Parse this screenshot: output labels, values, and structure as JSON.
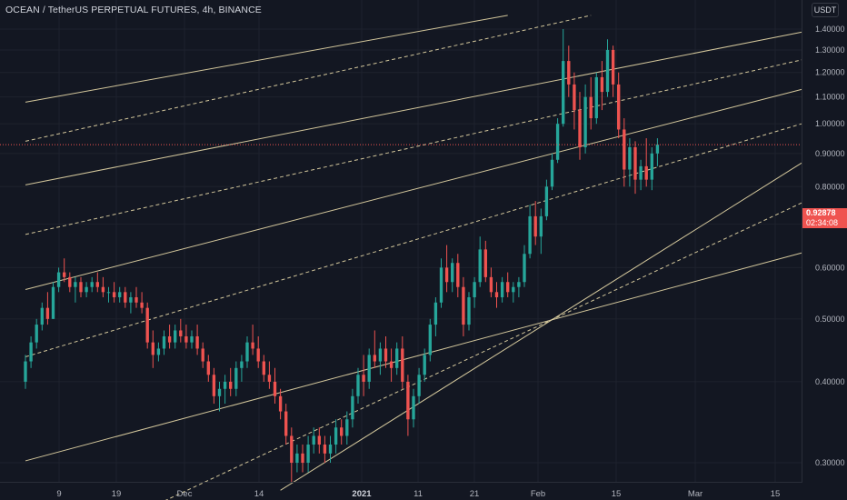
{
  "header": {
    "title": "OCEAN / TetherUS PERPETUAL FUTURES, 4h, BINANCE",
    "currency": "USDT"
  },
  "price_tag": {
    "price": "0.92878",
    "countdown": "02:34:08",
    "color": "#ef5350"
  },
  "colors": {
    "background": "#131722",
    "up": "#26a69a",
    "down": "#ef5350",
    "channel": "#e8d9a8",
    "grid": "#1e222d",
    "axis_text": "#b2b5be"
  },
  "chart_data": {
    "type": "candlestick",
    "title": "OCEAN / TetherUS PERPETUAL FUTURES, 4h, BINANCE",
    "xlabel": "",
    "ylabel": "",
    "ylim": [
      0.27,
      1.43
    ],
    "y_scale": "log",
    "grid": true,
    "y_ticks": [
      "1.40000",
      "1.30000",
      "1.20000",
      "1.10000",
      "1.00000",
      "0.90000",
      "0.80000",
      "0.70000",
      "0.60000",
      "0.50000",
      "0.40000",
      "0.30000"
    ],
    "x_ticks": [
      {
        "label": "9",
        "bold": false
      },
      {
        "label": "19",
        "bold": false
      },
      {
        "label": "Dec",
        "bold": false
      },
      {
        "label": "14",
        "bold": false
      },
      {
        "label": "2021",
        "bold": true
      },
      {
        "label": "11",
        "bold": false
      },
      {
        "label": "21",
        "bold": false
      },
      {
        "label": "Feb",
        "bold": false
      },
      {
        "label": "15",
        "bold": false
      },
      {
        "label": "Mar",
        "bold": false
      },
      {
        "label": "15",
        "bold": false
      }
    ],
    "x_range": [
      "2020-11-03",
      "2021-03-23"
    ],
    "last_price": 0.92878,
    "candles": [
      [
        "2020-11-03",
        0.4,
        0.44,
        0.39,
        0.43
      ],
      [
        "2020-11-04",
        0.43,
        0.47,
        0.42,
        0.46
      ],
      [
        "2020-11-05",
        0.46,
        0.5,
        0.45,
        0.49
      ],
      [
        "2020-11-06",
        0.49,
        0.53,
        0.48,
        0.52
      ],
      [
        "2020-11-07",
        0.52,
        0.55,
        0.49,
        0.5
      ],
      [
        "2020-11-08",
        0.5,
        0.57,
        0.5,
        0.56
      ],
      [
        "2020-11-09",
        0.56,
        0.6,
        0.55,
        0.59
      ],
      [
        "2020-11-10",
        0.59,
        0.62,
        0.57,
        0.58
      ],
      [
        "2020-11-11",
        0.58,
        0.59,
        0.55,
        0.56
      ],
      [
        "2020-11-12",
        0.56,
        0.58,
        0.53,
        0.57
      ],
      [
        "2020-11-13",
        0.57,
        0.58,
        0.54,
        0.55
      ],
      [
        "2020-11-14",
        0.55,
        0.57,
        0.54,
        0.56
      ],
      [
        "2020-11-15",
        0.56,
        0.58,
        0.55,
        0.57
      ],
      [
        "2020-11-16",
        0.57,
        0.59,
        0.55,
        0.56
      ],
      [
        "2020-11-17",
        0.56,
        0.58,
        0.54,
        0.55
      ],
      [
        "2020-11-18",
        0.55,
        0.56,
        0.53,
        0.55
      ],
      [
        "2020-11-19",
        0.55,
        0.57,
        0.53,
        0.54
      ],
      [
        "2020-11-20",
        0.54,
        0.56,
        0.53,
        0.55
      ],
      [
        "2020-11-21",
        0.55,
        0.56,
        0.52,
        0.53
      ],
      [
        "2020-11-22",
        0.53,
        0.55,
        0.51,
        0.54
      ],
      [
        "2020-11-23",
        0.54,
        0.56,
        0.52,
        0.53
      ],
      [
        "2020-11-24",
        0.53,
        0.55,
        0.51,
        0.52
      ],
      [
        "2020-11-25",
        0.52,
        0.53,
        0.45,
        0.46
      ],
      [
        "2020-11-26",
        0.46,
        0.48,
        0.42,
        0.44
      ],
      [
        "2020-11-27",
        0.44,
        0.46,
        0.43,
        0.45
      ],
      [
        "2020-11-28",
        0.45,
        0.48,
        0.44,
        0.47
      ],
      [
        "2020-11-29",
        0.47,
        0.49,
        0.45,
        0.46
      ],
      [
        "2020-11-30",
        0.46,
        0.49,
        0.45,
        0.48
      ],
      [
        "2020-12-01",
        0.48,
        0.5,
        0.46,
        0.47
      ],
      [
        "2020-12-02",
        0.47,
        0.49,
        0.45,
        0.46
      ],
      [
        "2020-12-03",
        0.46,
        0.48,
        0.45,
        0.47
      ],
      [
        "2020-12-04",
        0.47,
        0.49,
        0.44,
        0.45
      ],
      [
        "2020-12-05",
        0.45,
        0.46,
        0.42,
        0.43
      ],
      [
        "2020-12-06",
        0.43,
        0.44,
        0.4,
        0.41
      ],
      [
        "2020-12-07",
        0.41,
        0.42,
        0.37,
        0.38
      ],
      [
        "2020-12-08",
        0.38,
        0.4,
        0.36,
        0.39
      ],
      [
        "2020-12-09",
        0.39,
        0.41,
        0.37,
        0.4
      ],
      [
        "2020-12-10",
        0.4,
        0.42,
        0.38,
        0.39
      ],
      [
        "2020-12-11",
        0.39,
        0.43,
        0.38,
        0.42
      ],
      [
        "2020-12-12",
        0.42,
        0.44,
        0.4,
        0.43
      ],
      [
        "2020-12-13",
        0.43,
        0.47,
        0.42,
        0.46
      ],
      [
        "2020-12-14",
        0.46,
        0.49,
        0.44,
        0.45
      ],
      [
        "2020-12-15",
        0.45,
        0.47,
        0.42,
        0.43
      ],
      [
        "2020-12-16",
        0.43,
        0.44,
        0.4,
        0.41
      ],
      [
        "2020-12-17",
        0.41,
        0.43,
        0.39,
        0.4
      ],
      [
        "2020-12-18",
        0.4,
        0.42,
        0.37,
        0.38
      ],
      [
        "2020-12-19",
        0.38,
        0.39,
        0.35,
        0.36
      ],
      [
        "2020-12-20",
        0.36,
        0.37,
        0.32,
        0.33
      ],
      [
        "2020-12-21",
        0.33,
        0.34,
        0.28,
        0.3
      ],
      [
        "2020-12-22",
        0.3,
        0.32,
        0.29,
        0.31
      ],
      [
        "2020-12-23",
        0.31,
        0.32,
        0.29,
        0.3
      ],
      [
        "2020-12-24",
        0.3,
        0.33,
        0.29,
        0.32
      ],
      [
        "2020-12-25",
        0.32,
        0.34,
        0.31,
        0.33
      ],
      [
        "2020-12-26",
        0.33,
        0.34,
        0.31,
        0.32
      ],
      [
        "2020-12-27",
        0.32,
        0.33,
        0.3,
        0.31
      ],
      [
        "2020-12-28",
        0.31,
        0.33,
        0.3,
        0.32
      ],
      [
        "2020-12-29",
        0.32,
        0.35,
        0.31,
        0.34
      ],
      [
        "2020-12-30",
        0.34,
        0.35,
        0.32,
        0.33
      ],
      [
        "2020-12-31",
        0.33,
        0.36,
        0.32,
        0.35
      ],
      [
        "2021-01-01",
        0.35,
        0.39,
        0.34,
        0.38
      ],
      [
        "2021-01-02",
        0.38,
        0.42,
        0.37,
        0.41
      ],
      [
        "2021-01-03",
        0.41,
        0.44,
        0.38,
        0.4
      ],
      [
        "2021-01-04",
        0.4,
        0.45,
        0.39,
        0.44
      ],
      [
        "2021-01-05",
        0.44,
        0.48,
        0.42,
        0.43
      ],
      [
        "2021-01-06",
        0.43,
        0.46,
        0.41,
        0.45
      ],
      [
        "2021-01-07",
        0.45,
        0.47,
        0.42,
        0.43
      ],
      [
        "2021-01-08",
        0.43,
        0.45,
        0.4,
        0.42
      ],
      [
        "2021-01-09",
        0.42,
        0.46,
        0.41,
        0.45
      ],
      [
        "2021-01-10",
        0.45,
        0.47,
        0.39,
        0.4
      ],
      [
        "2021-01-11",
        0.4,
        0.41,
        0.33,
        0.35
      ],
      [
        "2021-01-12",
        0.35,
        0.39,
        0.34,
        0.38
      ],
      [
        "2021-01-13",
        0.38,
        0.42,
        0.37,
        0.41
      ],
      [
        "2021-01-14",
        0.41,
        0.45,
        0.4,
        0.44
      ],
      [
        "2021-01-15",
        0.44,
        0.5,
        0.43,
        0.49
      ],
      [
        "2021-01-16",
        0.49,
        0.54,
        0.47,
        0.53
      ],
      [
        "2021-01-17",
        0.53,
        0.62,
        0.52,
        0.6
      ],
      [
        "2021-01-18",
        0.6,
        0.65,
        0.55,
        0.57
      ],
      [
        "2021-01-19",
        0.57,
        0.62,
        0.55,
        0.61
      ],
      [
        "2021-01-20",
        0.61,
        0.63,
        0.54,
        0.56
      ],
      [
        "2021-01-21",
        0.56,
        0.58,
        0.47,
        0.49
      ],
      [
        "2021-01-22",
        0.49,
        0.55,
        0.48,
        0.54
      ],
      [
        "2021-01-23",
        0.54,
        0.58,
        0.52,
        0.57
      ],
      [
        "2021-01-24",
        0.57,
        0.67,
        0.56,
        0.64
      ],
      [
        "2021-01-25",
        0.64,
        0.66,
        0.57,
        0.58
      ],
      [
        "2021-01-26",
        0.58,
        0.6,
        0.54,
        0.55
      ],
      [
        "2021-01-27",
        0.55,
        0.57,
        0.52,
        0.54
      ],
      [
        "2021-01-28",
        0.54,
        0.58,
        0.53,
        0.57
      ],
      [
        "2021-01-29",
        0.57,
        0.59,
        0.54,
        0.55
      ],
      [
        "2021-01-30",
        0.55,
        0.57,
        0.53,
        0.56
      ],
      [
        "2021-01-31",
        0.56,
        0.58,
        0.54,
        0.57
      ],
      [
        "2021-02-01",
        0.57,
        0.65,
        0.56,
        0.63
      ],
      [
        "2021-02-02",
        0.63,
        0.75,
        0.62,
        0.72
      ],
      [
        "2021-02-03",
        0.72,
        0.76,
        0.65,
        0.67
      ],
      [
        "2021-02-04",
        0.67,
        0.74,
        0.63,
        0.72
      ],
      [
        "2021-02-05",
        0.72,
        0.82,
        0.71,
        0.8
      ],
      [
        "2021-02-06",
        0.8,
        0.9,
        0.79,
        0.88
      ],
      [
        "2021-02-07",
        0.88,
        1.02,
        0.87,
        1.0
      ],
      [
        "2021-02-08",
        1.0,
        1.4,
        0.99,
        1.25
      ],
      [
        "2021-02-09",
        1.25,
        1.32,
        1.1,
        1.15
      ],
      [
        "2021-02-10",
        1.15,
        1.2,
        0.98,
        1.05
      ],
      [
        "2021-02-11",
        1.05,
        1.12,
        0.88,
        0.92
      ],
      [
        "2021-02-12",
        0.92,
        1.15,
        0.9,
        1.1
      ],
      [
        "2021-02-13",
        1.1,
        1.18,
        0.98,
        1.02
      ],
      [
        "2021-02-14",
        1.02,
        1.2,
        1.0,
        1.18
      ],
      [
        "2021-02-15",
        1.18,
        1.25,
        1.05,
        1.12
      ],
      [
        "2021-02-16",
        1.12,
        1.35,
        1.1,
        1.3
      ],
      [
        "2021-02-17",
        1.3,
        1.32,
        1.1,
        1.15
      ],
      [
        "2021-02-18",
        1.15,
        1.2,
        0.95,
        0.98
      ],
      [
        "2021-02-19",
        0.98,
        1.02,
        0.8,
        0.85
      ],
      [
        "2021-02-20",
        0.85,
        0.95,
        0.8,
        0.92
      ],
      [
        "2021-02-21",
        0.92,
        0.94,
        0.78,
        0.82
      ],
      [
        "2021-02-22",
        0.82,
        0.88,
        0.79,
        0.86
      ],
      [
        "2021-02-23",
        0.86,
        0.95,
        0.8,
        0.82
      ],
      [
        "2021-02-24",
        0.82,
        0.92,
        0.79,
        0.9
      ],
      [
        "2021-02-25",
        0.9,
        0.95,
        0.86,
        0.92878
      ]
    ],
    "channel_lines": [
      {
        "style": "solid",
        "start": [
          "2020-11-03",
          0.302
        ],
        "end": [
          "2021-03-23",
          0.632
        ]
      },
      {
        "style": "dashed",
        "start": [
          "2020-11-26",
          0.257
        ],
        "end": [
          "2021-03-23",
          0.755
        ]
      },
      {
        "style": "solid",
        "start": [
          "2020-12-19",
          0.272
        ],
        "end": [
          "2021-03-23",
          0.87
        ]
      },
      {
        "style": "dashed",
        "start": [
          "2020-11-03",
          0.437
        ],
        "end": [
          "2021-03-23",
          1.0
        ]
      },
      {
        "style": "solid",
        "start": [
          "2020-11-03",
          0.555
        ],
        "end": [
          "2021-03-23",
          1.13
        ]
      },
      {
        "style": "dashed",
        "start": [
          "2020-11-03",
          0.675
        ],
        "end": [
          "2021-03-23",
          1.255
        ]
      },
      {
        "style": "solid",
        "start": [
          "2020-11-03",
          0.805
        ],
        "end": [
          "2021-03-23",
          1.385
        ]
      },
      {
        "style": "dashed",
        "start": [
          "2020-11-03",
          0.94
        ],
        "end": [
          "2021-02-13",
          1.47
        ]
      },
      {
        "style": "solid",
        "start": [
          "2020-11-03",
          1.08
        ],
        "end": [
          "2021-01-29",
          1.47
        ]
      }
    ]
  }
}
